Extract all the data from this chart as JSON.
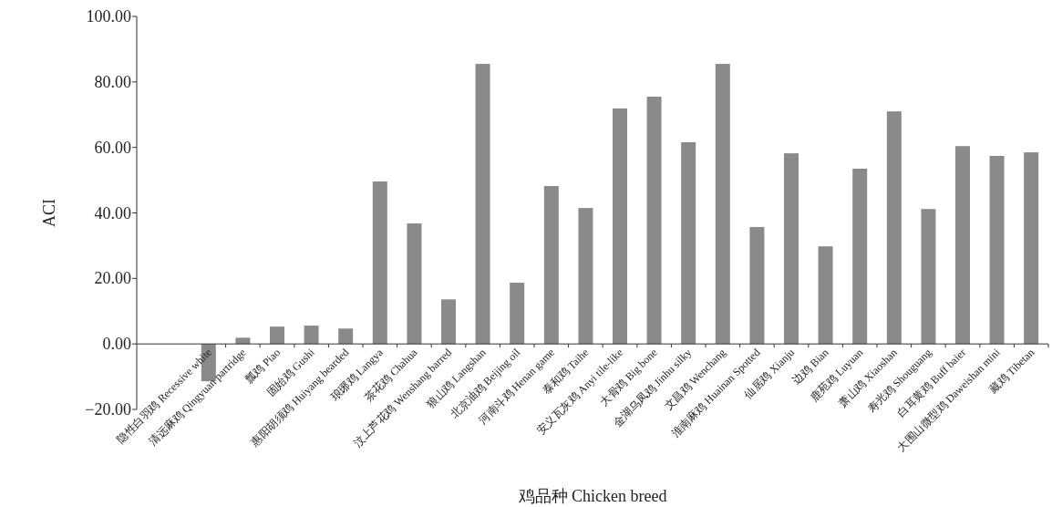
{
  "chart_data": {
    "type": "bar",
    "xlabel": "鸡品种 Chicken breed",
    "ylabel": "ACI",
    "categories": [
      "隐性白羽鸡 Recessive white",
      "清远麻鸡 Qingyuan partridge",
      "瓢鸡 Piao",
      "固始鸡 Gushi",
      "惠阳胡须鸡 Huiyang bearded",
      "琅琊鸡 Langya",
      "茶花鸡 Chahua",
      "汶上芦花鸡 Wenshang barred",
      "狼山鸡  Langshan",
      "北京油鸡 Beijing oil",
      "河南斗鸡 Henan game",
      "泰和鸡 Taihe",
      "安义瓦灰鸡 Anyi tile-like",
      "大骨鸡 Big bone",
      "金湖乌凤鸡 Jinhu silky",
      "文昌鸡 Wenchang",
      "淮南麻鸡 Huainan Spotted",
      "仙居鸡 Xianju",
      "边鸡 Bian",
      "鹿苑鸡 Luyuan",
      "萧山鸡 Xiaoshan",
      "寿光鸡 Shouguang",
      "白耳黄鸡 Buff baier",
      "大围山微型鸡 Daweishan mini",
      "藏鸡 Tibetan"
    ],
    "values": [
      -11.4,
      1.9,
      5.3,
      5.6,
      4.7,
      49.6,
      36.8,
      13.6,
      85.5,
      18.7,
      48.2,
      41.5,
      71.9,
      75.5,
      61.6,
      85.5,
      35.7,
      58.2,
      29.8,
      53.5,
      71,
      41.2,
      60.4,
      57.4,
      58.5
    ],
    "color": "#8a8a8a",
    "ylim": [
      -20,
      100
    ],
    "yticks": [
      {
        "value": -20,
        "label": "−20.00"
      },
      {
        "value": 0,
        "label": "0.00"
      },
      {
        "value": 20,
        "label": "20.00"
      },
      {
        "value": 40,
        "label": "40.00"
      },
      {
        "value": 60,
        "label": "60.00"
      },
      {
        "value": 80,
        "label": "80.00"
      },
      {
        "value": 100,
        "label": "100.00"
      }
    ],
    "grid": false
  }
}
